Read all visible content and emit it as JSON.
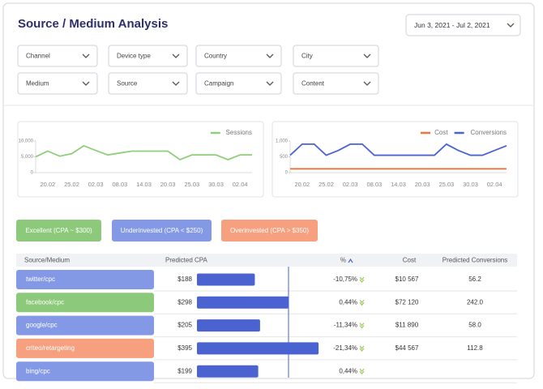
{
  "header": {
    "title": "Source / Medium Analysis",
    "date_range": "Jun 3, 2021 - Jul 2, 2021"
  },
  "filters": [
    "Channel",
    "Device type",
    "Country",
    "City",
    "Medium",
    "Source",
    "Campaign",
    "Content"
  ],
  "charts": [
    {
      "type": "line",
      "x": [
        null,
        "20.02",
        null,
        "25.02",
        null,
        "02.03",
        null,
        "08.03",
        null,
        "14.03",
        null,
        "20.03",
        null,
        "25.03",
        null,
        "30.03",
        null,
        "02.04",
        null
      ],
      "series": [
        {
          "name": "Sessions",
          "color": "#8fcf7a",
          "values": [
            5000,
            6800,
            5200,
            6000,
            8500,
            7000,
            5600,
            6200,
            6800,
            6800,
            6800,
            6800,
            4100,
            5600,
            5600,
            5600,
            4100,
            5600,
            5600
          ]
        }
      ],
      "ylim": [
        0,
        10000
      ],
      "yticks": [
        0,
        {
          "value": 5000,
          "label": "5,000"
        },
        {
          "value": 10000,
          "label": "10,000"
        }
      ],
      "legend": "top-right"
    },
    {
      "type": "line",
      "x": [
        null,
        "20.02",
        null,
        "25.02",
        null,
        "02.03",
        null,
        "08.03",
        null,
        "14.03",
        null,
        "20.03",
        null,
        "25.03",
        null,
        "30.03",
        null,
        "02.04",
        null
      ],
      "series": [
        {
          "name": "Cost",
          "color": "#f0733f",
          "values": [
            120,
            120,
            120,
            120,
            120,
            120,
            120,
            120,
            120,
            120,
            120,
            120,
            120,
            120,
            120,
            120,
            120,
            120,
            120
          ]
        },
        {
          "name": "Conversions",
          "color": "#4a63d0",
          "values": [
            550,
            900,
            900,
            550,
            700,
            900,
            900,
            550,
            550,
            550,
            550,
            550,
            550,
            900,
            700,
            550,
            550,
            700,
            850
          ]
        }
      ],
      "ylim": [
        0,
        1000
      ],
      "yticks": [
        0,
        500,
        {
          "value": 1000,
          "label": "1,000"
        }
      ],
      "legend": "top-right"
    }
  ],
  "segments": [
    {
      "label": "Excellent (CPA ~ $300)",
      "color": "#8dc97a"
    },
    {
      "label": "Underinvested (CPA < $250)",
      "color": "#8499e6"
    },
    {
      "label": "Overinvested (CPA > $350)",
      "color": "#f7a07f"
    }
  ],
  "table": {
    "columns": [
      "Source/Medium",
      "Predicted CPA",
      "%",
      "Cost",
      "Predicted Conversions"
    ],
    "rows": [
      {
        "source": "twitter/cpc",
        "color": "#8499e6",
        "cpa": 188,
        "cpa_label": "$188",
        "change": "-10,75%",
        "cost": "$10 567",
        "conversions": "56.2"
      },
      {
        "source": "facebook/cpc",
        "color": "#8dc97a",
        "cpa": 298,
        "cpa_label": "$298",
        "change": "0,44%",
        "cost": "$72 120",
        "conversions": "242.0"
      },
      {
        "source": "google/cpc",
        "color": "#8499e6",
        "cpa": 205,
        "cpa_label": "$205",
        "change": "-11,34%",
        "cost": "$11 890",
        "conversions": "58.0"
      },
      {
        "source": "criteo/retargeting",
        "color": "#f7a07f",
        "cpa": 395,
        "cpa_label": "$395",
        "change": "-21,34%",
        "cost": "$44 567",
        "conversions": "112.8"
      },
      {
        "source": "bing/cpc",
        "color": "#8499e6",
        "cpa": 199,
        "cpa_label": "$199",
        "change": "0,44%"
      }
    ]
  }
}
